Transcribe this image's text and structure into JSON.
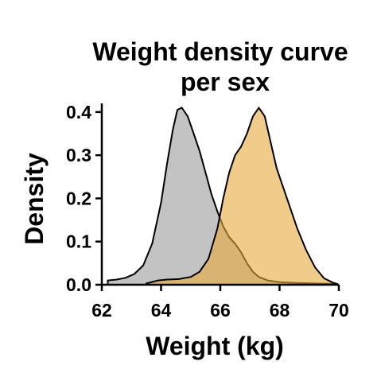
{
  "chart_data": {
    "type": "area",
    "title": [
      "Weight density curve",
      "per sex"
    ],
    "xlabel": "Weight (kg)",
    "ylabel": "Density",
    "xlim": [
      62,
      70
    ],
    "ylim": [
      0,
      0.42
    ],
    "x_ticks": [
      62,
      64,
      66,
      68,
      70
    ],
    "y_ticks": [
      0.0,
      0.1,
      0.2,
      0.3,
      0.4
    ],
    "x_tick_labels": [
      "62",
      "64",
      "66",
      "68",
      "70"
    ],
    "y_tick_labels": [
      "0.0",
      "0.1",
      "0.2",
      "0.3",
      "0.4"
    ],
    "grid": false,
    "legend": "none",
    "series": [
      {
        "color": "#bdbdbd",
        "points": [
          [
            62.2,
            0.01
          ],
          [
            62.5,
            0.012
          ],
          [
            62.8,
            0.016
          ],
          [
            63.1,
            0.025
          ],
          [
            63.4,
            0.045
          ],
          [
            63.7,
            0.095
          ],
          [
            64.0,
            0.19
          ],
          [
            64.2,
            0.28
          ],
          [
            64.4,
            0.36
          ],
          [
            64.55,
            0.405
          ],
          [
            64.7,
            0.41
          ],
          [
            64.9,
            0.39
          ],
          [
            65.1,
            0.35
          ],
          [
            65.3,
            0.31
          ],
          [
            65.5,
            0.26
          ],
          [
            65.7,
            0.21
          ],
          [
            65.9,
            0.17
          ],
          [
            66.1,
            0.135
          ],
          [
            66.3,
            0.11
          ],
          [
            66.5,
            0.095
          ],
          [
            66.7,
            0.075
          ],
          [
            66.9,
            0.05
          ],
          [
            67.1,
            0.03
          ],
          [
            67.3,
            0.018
          ],
          [
            67.6,
            0.01
          ],
          [
            68.0,
            0.006
          ],
          [
            68.6,
            0.004
          ],
          [
            69.2,
            0.003
          ],
          [
            69.9,
            0.002
          ]
        ]
      },
      {
        "color": "#e6a93c",
        "points": [
          [
            63.5,
            0.003
          ],
          [
            63.9,
            0.01
          ],
          [
            64.2,
            0.012
          ],
          [
            64.6,
            0.013
          ],
          [
            65.0,
            0.018
          ],
          [
            65.3,
            0.03
          ],
          [
            65.6,
            0.06
          ],
          [
            65.9,
            0.13
          ],
          [
            66.1,
            0.2
          ],
          [
            66.3,
            0.26
          ],
          [
            66.5,
            0.3
          ],
          [
            66.7,
            0.32
          ],
          [
            66.9,
            0.35
          ],
          [
            67.1,
            0.39
          ],
          [
            67.3,
            0.41
          ],
          [
            67.5,
            0.39
          ],
          [
            67.7,
            0.33
          ],
          [
            67.9,
            0.27
          ],
          [
            68.1,
            0.23
          ],
          [
            68.3,
            0.19
          ],
          [
            68.6,
            0.13
          ],
          [
            68.9,
            0.08
          ],
          [
            69.2,
            0.04
          ],
          [
            69.5,
            0.015
          ],
          [
            69.8,
            0.005
          ],
          [
            69.95,
            0.002
          ]
        ]
      }
    ]
  }
}
